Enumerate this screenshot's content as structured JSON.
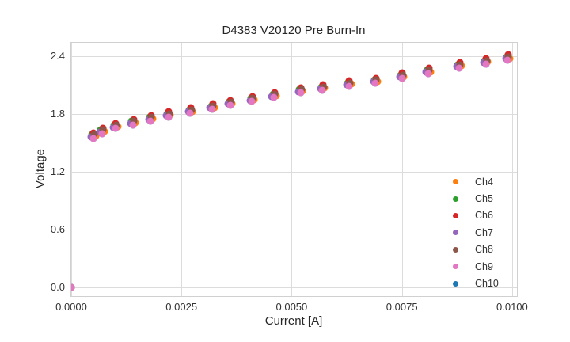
{
  "title": "D4383 V20120 Pre Burn-In",
  "x_axis": {
    "label": "Current [A]",
    "tick_labels": [
      "0.0000",
      "0.0025",
      "0.0050",
      "0.0075",
      "0.0100"
    ],
    "tick_values": [
      0,
      0.0025,
      0.005,
      0.0075,
      0.01
    ]
  },
  "y_axis": {
    "label": "Voltage",
    "tick_labels": [
      "0.0",
      "0.6",
      "1.2",
      "1.8",
      "2.4"
    ],
    "tick_values": [
      0,
      0.6,
      1.2,
      1.8,
      2.4
    ]
  },
  "colors": {
    "grid": "#dcdcdc",
    "spine": "#d0d0d0",
    "text": "#262626"
  },
  "chart_data": {
    "type": "scatter",
    "title": "D4383 V20120 Pre Burn-In",
    "xlabel": "Current [A]",
    "ylabel": "Voltage",
    "xlim": [
      0,
      0.01011
    ],
    "ylim": [
      -0.09,
      2.541
    ],
    "grid": true,
    "legend_position": "lower right",
    "marker_size_px": 9,
    "x": [
      0,
      0.0005,
      0.0007,
      0.001,
      0.0014,
      0.0018,
      0.0022,
      0.0027,
      0.0032,
      0.0036,
      0.0041,
      0.0046,
      0.0052,
      0.0057,
      0.0063,
      0.0069,
      0.0075,
      0.0081,
      0.0088,
      0.0094,
      0.0099
    ],
    "draw_order": [
      "Ch10",
      "Ch4",
      "Ch5",
      "Ch6",
      "Ch7",
      "Ch8",
      "Ch9"
    ],
    "series": [
      {
        "name": "Ch4",
        "color": "#ff7f0e",
        "x_offset": 5e-05,
        "values": [
          0,
          1.57,
          1.62,
          1.67,
          1.71,
          1.75,
          1.79,
          1.83,
          1.87,
          1.91,
          1.95,
          1.99,
          2.04,
          2.07,
          2.11,
          2.14,
          2.19,
          2.24,
          2.3,
          2.34,
          2.38
        ]
      },
      {
        "name": "Ch5",
        "color": "#2ca02c",
        "x_offset": -3e-05,
        "values": [
          0,
          1.585,
          1.635,
          1.685,
          1.725,
          1.765,
          1.805,
          1.845,
          1.885,
          1.925,
          1.965,
          2.005,
          2.055,
          2.085,
          2.125,
          2.155,
          2.205,
          2.255,
          2.315,
          2.355,
          2.395
        ]
      },
      {
        "name": "Ch6",
        "color": "#d62728",
        "x_offset": 1e-05,
        "values": [
          0,
          1.605,
          1.655,
          1.705,
          1.745,
          1.785,
          1.825,
          1.865,
          1.905,
          1.945,
          1.985,
          2.025,
          2.075,
          2.105,
          2.145,
          2.175,
          2.225,
          2.275,
          2.335,
          2.375,
          2.415
        ]
      },
      {
        "name": "Ch7",
        "color": "#9467bd",
        "x_offset": -5e-05,
        "values": [
          0,
          1.565,
          1.615,
          1.665,
          1.705,
          1.745,
          1.785,
          1.825,
          1.865,
          1.905,
          1.945,
          1.985,
          2.035,
          2.065,
          2.105,
          2.135,
          2.185,
          2.235,
          2.295,
          2.335,
          2.375
        ]
      },
      {
        "name": "Ch8",
        "color": "#8c564b",
        "x_offset": 2e-05,
        "values": [
          0,
          1.585,
          1.635,
          1.685,
          1.725,
          1.765,
          1.805,
          1.845,
          1.885,
          1.925,
          1.965,
          2.005,
          2.055,
          2.085,
          2.125,
          2.155,
          2.205,
          2.255,
          2.315,
          2.355,
          2.395
        ]
      },
      {
        "name": "Ch9",
        "color": "#e377c2",
        "x_offset": 0,
        "values": [
          0,
          1.55,
          1.6,
          1.65,
          1.69,
          1.73,
          1.77,
          1.81,
          1.85,
          1.89,
          1.93,
          1.97,
          2.02,
          2.05,
          2.09,
          2.12,
          2.17,
          2.22,
          2.28,
          2.32,
          2.36
        ]
      },
      {
        "name": "Ch10",
        "color": "#1f77b4",
        "x_offset": 0,
        "values": [
          0,
          1.55,
          1.6,
          1.65,
          1.69,
          1.73,
          1.77,
          1.81,
          1.85,
          1.89,
          1.93,
          1.97,
          2.02,
          2.05,
          2.09,
          2.12,
          2.17,
          2.22,
          2.28,
          2.32,
          2.36
        ]
      }
    ]
  }
}
